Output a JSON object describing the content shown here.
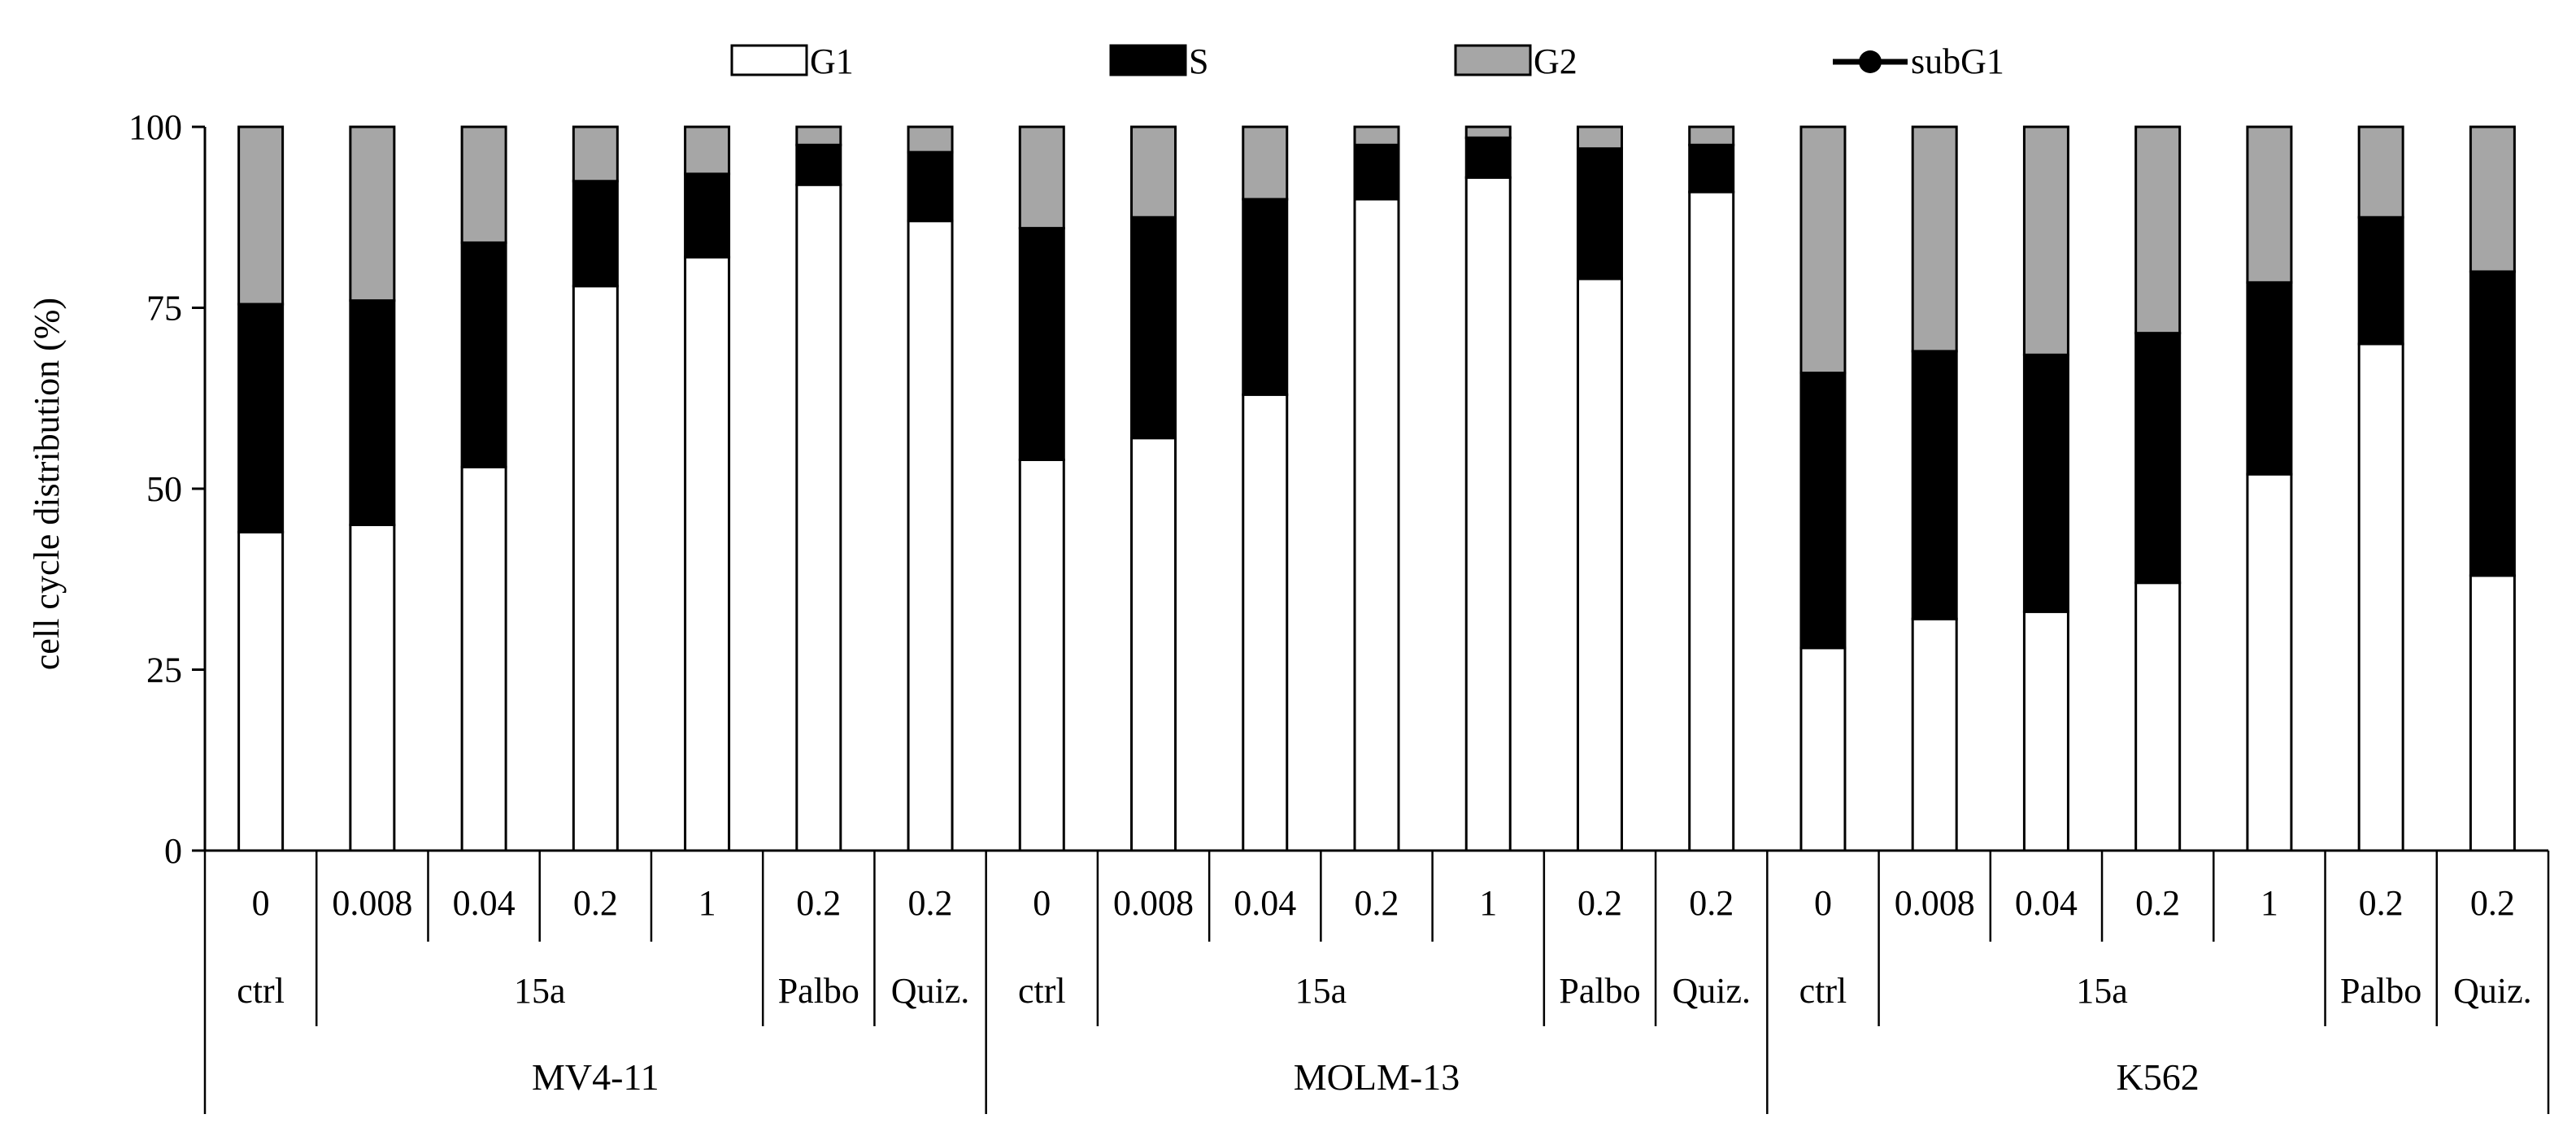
{
  "chart_data": {
    "type": "bar",
    "stacked": true,
    "ylabel": "cell cycle distribution (%)",
    "ylim": [
      0,
      100
    ],
    "yticks": [
      "0",
      "25",
      "50",
      "75",
      "100"
    ],
    "legend": {
      "position": "top",
      "items": [
        {
          "label": "G1",
          "swatch": "bar",
          "color": "#ffffff"
        },
        {
          "label": "S",
          "swatch": "bar",
          "color": "#000000"
        },
        {
          "label": "G2",
          "swatch": "bar",
          "color": "#a6a6a6"
        },
        {
          "label": "subG1",
          "swatch": "line-marker",
          "color": "#000000"
        }
      ]
    },
    "categories": [
      "0",
      "0.008",
      "0.04",
      "0.2",
      "1",
      "0.2",
      "0.2",
      "0",
      "0.008",
      "0.04",
      "0.2",
      "1",
      "0.2",
      "0.2",
      "0",
      "0.008",
      "0.04",
      "0.2",
      "1",
      "0.2",
      "0.2"
    ],
    "treatment_groups": [
      {
        "label": "ctrl",
        "span": 1
      },
      {
        "label": "15a",
        "span": 4
      },
      {
        "label": "Palbo",
        "span": 1
      },
      {
        "label": "Quiz.",
        "span": 1
      },
      {
        "label": "ctrl",
        "span": 1
      },
      {
        "label": "15a",
        "span": 4
      },
      {
        "label": "Palbo",
        "span": 1
      },
      {
        "label": "Quiz.",
        "span": 1
      },
      {
        "label": "ctrl",
        "span": 1
      },
      {
        "label": "15a",
        "span": 4
      },
      {
        "label": "Palbo",
        "span": 1
      },
      {
        "label": "Quiz.",
        "span": 1
      }
    ],
    "cell_lines": [
      {
        "label": "MV4-11",
        "span": 7
      },
      {
        "label": "MOLM-13",
        "span": 7
      },
      {
        "label": "K562",
        "span": 7
      }
    ],
    "series": [
      {
        "name": "G1",
        "color": "#ffffff",
        "values": [
          44,
          45,
          53,
          78,
          82,
          92,
          87,
          54,
          57,
          63,
          90,
          93,
          79,
          91,
          28,
          32,
          33,
          37,
          52,
          70,
          38
        ]
      },
      {
        "name": "S",
        "color": "#000000",
        "values": [
          31.5,
          31,
          31,
          14.5,
          11.5,
          5.5,
          9.5,
          32,
          30.5,
          27,
          7.5,
          5.5,
          18,
          6.5,
          38,
          37,
          35.5,
          34.5,
          26.5,
          17.5,
          42
        ]
      },
      {
        "name": "G2",
        "color": "#a6a6a6",
        "values": [
          24.5,
          24,
          16,
          7.5,
          6.5,
          2.5,
          3.5,
          14,
          12.5,
          10,
          2.5,
          1.5,
          3,
          2.5,
          34,
          31,
          31.5,
          28.5,
          21.5,
          12.5,
          20
        ]
      }
    ]
  }
}
